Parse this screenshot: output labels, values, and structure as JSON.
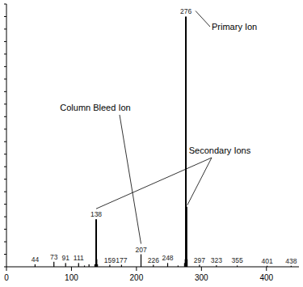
{
  "chart_data": {
    "type": "stick",
    "x": [
      44,
      73,
      91,
      111,
      120,
      127,
      136,
      138,
      139,
      140,
      159,
      177,
      207,
      226,
      248,
      264,
      274,
      275,
      276,
      277,
      278,
      297,
      323,
      355,
      401,
      438
    ],
    "values": [
      1,
      2,
      1.5,
      1.5,
      0.5,
      1,
      1,
      19,
      3,
      1,
      0.8,
      0.8,
      5,
      0.8,
      1.5,
      0.5,
      1.5,
      3,
      100,
      24,
      3,
      0.8,
      0.6,
      0.5,
      0.4,
      0.4
    ],
    "x_labels": [
      "44",
      "73",
      "91",
      "111",
      null,
      null,
      null,
      "138",
      null,
      null,
      "159",
      "177",
      "207",
      "226",
      "248",
      null,
      null,
      null,
      "276",
      null,
      null,
      "297",
      "323",
      "355",
      "401",
      "438"
    ],
    "color": "#000000",
    "xlim": [
      0,
      450
    ],
    "xticks": [
      0,
      100,
      200,
      300,
      400
    ],
    "ylim": [
      0,
      105
    ],
    "yticks": [
      0,
      5,
      10,
      15,
      20,
      25,
      30,
      35,
      40,
      45,
      50,
      55,
      60,
      65,
      70,
      75,
      80,
      85,
      90,
      95,
      100,
      105
    ],
    "tick_labels": "x",
    "annotations": [
      {
        "text": "Primary Ion",
        "x": [
          276
        ]
      },
      {
        "text": "Column Bleed Ion",
        "x": [
          207
        ]
      },
      {
        "text": "Secondary Ions",
        "x": [
          138,
          277
        ]
      }
    ]
  }
}
